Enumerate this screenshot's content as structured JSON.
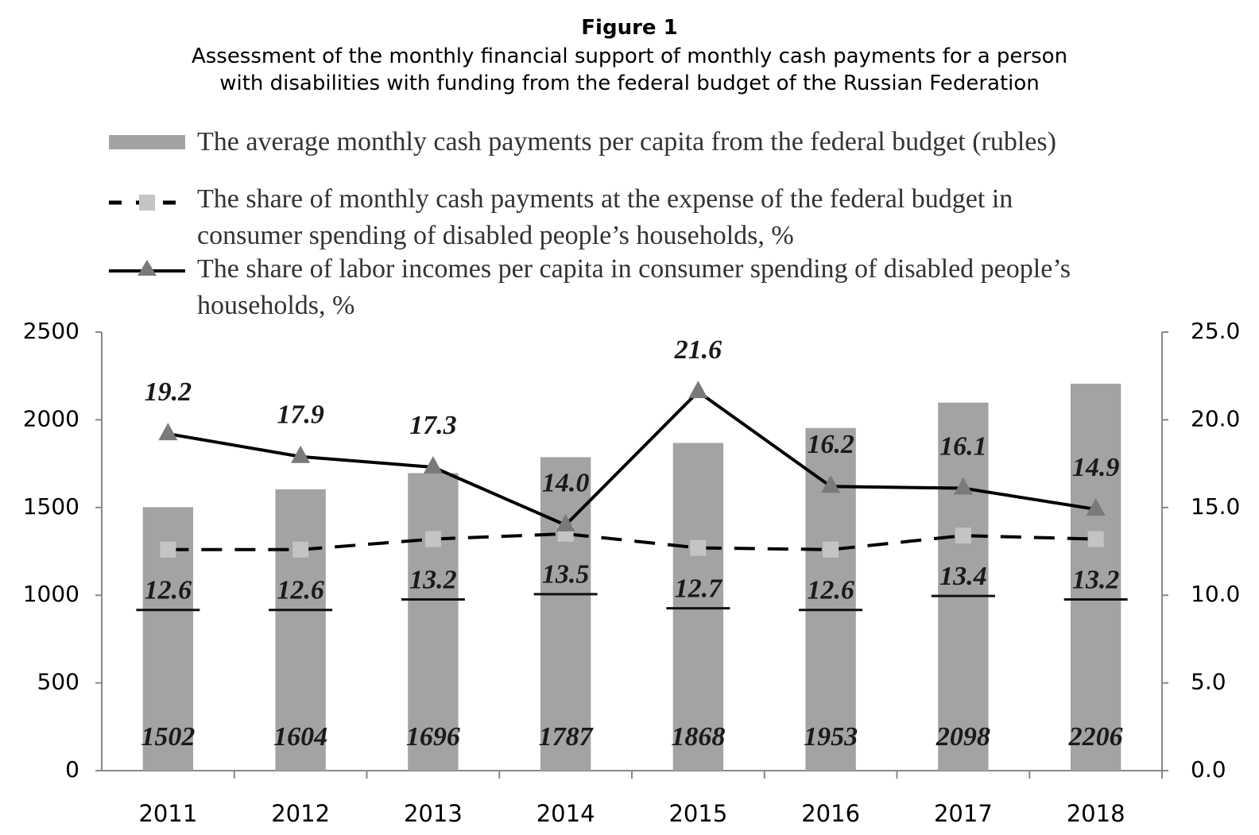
{
  "chart_data": {
    "type": "bar",
    "title": "Figure 1",
    "subtitle": [
      "Assessment of the monthly financial support of monthly cash payments for a person",
      "with disabilities with funding from the federal budget of the Russian Federation"
    ],
    "categories": [
      "2011",
      "2012",
      "2013",
      "2014",
      "2015",
      "2016",
      "2017",
      "2018"
    ],
    "series": [
      {
        "name": "The average monthly cash payments per capita from the federal budget (rubles)",
        "type": "bar",
        "color": "#a3a3a3",
        "values": [
          1502,
          1604,
          1696,
          1787,
          1868,
          1953,
          2098,
          2206
        ]
      },
      {
        "name": "The share of monthly cash payments at the expense of the federal budget in consumer spending of disabled people’s households, %",
        "type": "line",
        "axis": "y2",
        "color": "#000000",
        "marker_color": "#c4c4c4",
        "dash": true,
        "values": [
          12.6,
          12.6,
          13.2,
          13.5,
          12.7,
          12.6,
          13.4,
          13.2
        ]
      },
      {
        "name": "The share of labor incomes per capita in consumer spending of disabled people’s households, %",
        "type": "line",
        "axis": "y2",
        "color": "#000000",
        "marker_color": "#7a7a7a",
        "dash": false,
        "values": [
          19.2,
          17.9,
          17.3,
          14.0,
          21.6,
          16.2,
          16.1,
          14.9
        ],
        "value_labels": [
          "19.2",
          "17.9",
          "17.3",
          "14.0",
          "21.6",
          "16.2",
          "16.1",
          "14.9"
        ]
      }
    ],
    "ylim": [
      0,
      2500
    ],
    "yticks": [
      0,
      500,
      1000,
      1500,
      2000,
      2500
    ],
    "y2lim": [
      0,
      25
    ],
    "y2ticks": [
      {
        "value": 0,
        "label": "0.0"
      },
      {
        "value": 5,
        "label": "5.0"
      },
      {
        "value": 10,
        "label": "10.0"
      },
      {
        "value": 15,
        "label": "15.0"
      },
      {
        "value": 20,
        "label": "20.0"
      },
      {
        "value": 25,
        "label": "25.0"
      }
    ],
    "grid": false
  }
}
